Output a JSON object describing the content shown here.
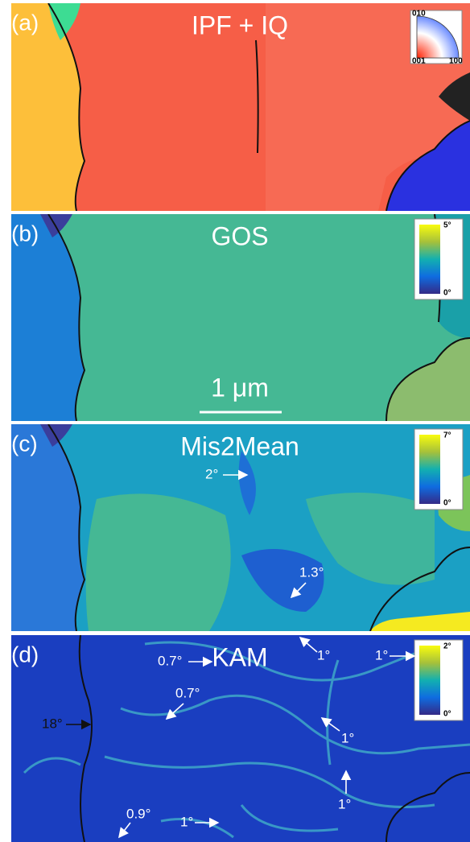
{
  "panels": [
    {
      "label": "(a)",
      "title": "IPF + IQ",
      "legend": {
        "labels": [
          "010",
          "001",
          "100"
        ]
      }
    },
    {
      "label": "(b)",
      "title": "GOS",
      "colorbar": {
        "max": "5°",
        "min": "0°"
      },
      "scale_bar": "1 μm"
    },
    {
      "label": "(c)",
      "title": "Mis2Mean",
      "colorbar": {
        "max": "7°",
        "min": "0°"
      },
      "annotations": [
        "2°",
        "1.3°"
      ]
    },
    {
      "label": "(d)",
      "title": "KAM",
      "colorbar": {
        "max": "2°",
        "min": "0°"
      },
      "annotations": [
        "0.7°",
        "0.7°",
        "18°",
        "0.9°",
        "1°",
        "1°",
        "1°",
        "1°",
        "1°"
      ]
    }
  ]
}
